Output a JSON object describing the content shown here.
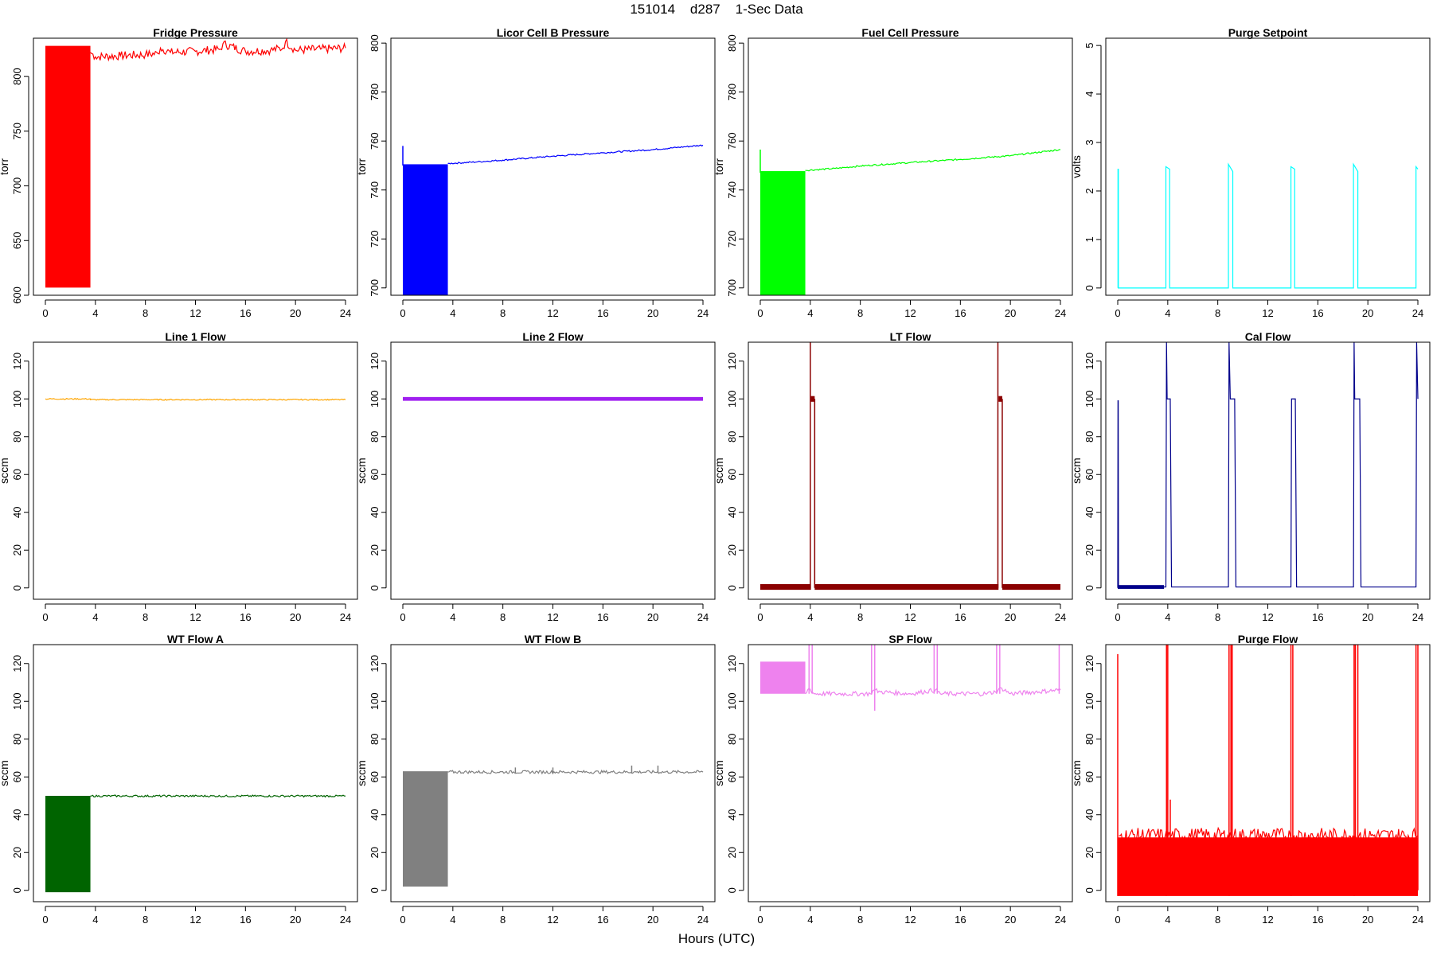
{
  "figure": {
    "title": "151014    d287    1-Sec Data",
    "xlabel": "Hours (UTC)"
  },
  "chart_data": [
    {
      "type": "line",
      "title": "Fridge Pressure",
      "xlabel": "",
      "ylabel": "torr",
      "color": "#ff0000",
      "xlim": [
        0,
        24
      ],
      "ylim": [
        600,
        835
      ],
      "xticks": [
        0,
        4,
        8,
        12,
        16,
        20,
        24
      ],
      "yticks": [
        600,
        650,
        700,
        750,
        800
      ],
      "bands": [
        {
          "x": [
            0,
            3.6
          ],
          "y": [
            607,
            828
          ]
        }
      ],
      "series": [
        {
          "x": [
            3.6,
            4,
            6,
            8,
            9,
            9.2,
            10,
            12,
            14,
            14.2,
            16,
            18,
            19,
            19.2,
            20,
            22,
            24
          ],
          "y": [
            822,
            818,
            819,
            820,
            821,
            826,
            822,
            823,
            825,
            830,
            823,
            824,
            826,
            832,
            824,
            825,
            826
          ],
          "noise": 4
        }
      ]
    },
    {
      "type": "line",
      "title": "Licor Cell B Pressure",
      "xlabel": "",
      "ylabel": "torr",
      "color": "#0000ff",
      "xlim": [
        0,
        24
      ],
      "ylim": [
        697,
        802
      ],
      "xticks": [
        0,
        4,
        8,
        12,
        16,
        20,
        24
      ],
      "yticks": [
        700,
        720,
        740,
        760,
        780,
        800
      ],
      "bands": [
        {
          "x": [
            0,
            3.6
          ],
          "y": [
            697,
            750.5
          ]
        }
      ],
      "spikes": [
        {
          "x": 0,
          "y": [
            750,
            758
          ]
        }
      ],
      "series": [
        {
          "x": [
            3.6,
            6,
            8,
            12,
            16,
            20,
            24
          ],
          "y": [
            750.8,
            751.5,
            752.2,
            753.8,
            755.2,
            756.5,
            758.3
          ],
          "noise": 0.3
        }
      ]
    },
    {
      "type": "line",
      "title": "Fuel Cell Pressure",
      "xlabel": "",
      "ylabel": "torr",
      "color": "#00ff00",
      "xlim": [
        0,
        24
      ],
      "ylim": [
        697,
        802
      ],
      "xticks": [
        0,
        4,
        8,
        12,
        16,
        20,
        24
      ],
      "yticks": [
        700,
        720,
        740,
        760,
        780,
        800
      ],
      "bands": [
        {
          "x": [
            0,
            3.6
          ],
          "y": [
            697,
            747.7
          ]
        }
      ],
      "spikes": [
        {
          "x": 0,
          "y": [
            747,
            756.5
          ]
        }
      ],
      "series": [
        {
          "x": [
            3.6,
            6,
            8,
            12,
            16,
            20,
            24
          ],
          "y": [
            748,
            748.8,
            749.8,
            751.2,
            752.5,
            754,
            756.5
          ],
          "noise": 0.3
        }
      ]
    },
    {
      "type": "line",
      "title": "Purge Setpoint",
      "xlabel": "",
      "ylabel": "volts",
      "color": "#00ffff",
      "xlim": [
        0,
        24
      ],
      "ylim": [
        -0.15,
        5.15
      ],
      "xticks": [
        0,
        4,
        8,
        12,
        16,
        20,
        24
      ],
      "yticks": [
        0,
        1,
        2,
        3,
        4,
        5
      ],
      "series": [
        {
          "x": [
            0,
            0.02,
            0.02,
            0.05,
            0.05,
            3.85,
            3.85,
            4.15,
            4.15,
            8.85,
            8.85,
            9.2,
            9.2,
            13.85,
            13.85,
            14.15,
            14.15,
            18.85,
            18.85,
            19.2,
            19.2,
            23.85,
            23.85,
            24
          ],
          "y": [
            0,
            0,
            2.45,
            2.45,
            0,
            0,
            2.5,
            2.45,
            0,
            0,
            2.55,
            2.4,
            0,
            0,
            2.5,
            2.45,
            0,
            0,
            2.55,
            2.4,
            0,
            0,
            2.5,
            2.45
          ],
          "noise": 0
        }
      ]
    },
    {
      "type": "line",
      "title": "Line 1 Flow",
      "xlabel": "",
      "ylabel": "sccm",
      "color": "#ffa500",
      "xlim": [
        0,
        24
      ],
      "ylim": [
        -6,
        130
      ],
      "xticks": [
        0,
        4,
        8,
        12,
        16,
        20,
        24
      ],
      "yticks": [
        0,
        20,
        40,
        60,
        80,
        100,
        120
      ],
      "series": [
        {
          "x": [
            0,
            3.6,
            3.6,
            24
          ],
          "y": [
            100,
            100,
            99.6,
            99.6
          ],
          "noise": 0.3
        }
      ]
    },
    {
      "type": "line",
      "title": "Line 2 Flow",
      "xlabel": "",
      "ylabel": "sccm",
      "color": "#a020f0",
      "xlim": [
        0,
        24
      ],
      "ylim": [
        -6,
        130
      ],
      "xticks": [
        0,
        4,
        8,
        12,
        16,
        20,
        24
      ],
      "yticks": [
        0,
        20,
        40,
        60,
        80,
        100,
        120
      ],
      "bands": [
        {
          "x": [
            0,
            24
          ],
          "y": [
            99,
            101
          ]
        }
      ]
    },
    {
      "type": "line",
      "title": "LT Flow",
      "xlabel": "",
      "ylabel": "sccm",
      "color": "#8b0000",
      "xlim": [
        0,
        24
      ],
      "ylim": [
        -6,
        130
      ],
      "xticks": [
        0,
        4,
        8,
        12,
        16,
        20,
        24
      ],
      "yticks": [
        0,
        20,
        40,
        60,
        80,
        100,
        120
      ],
      "bands": [
        {
          "x": [
            0,
            4.05
          ],
          "y": [
            -1,
            2
          ]
        },
        {
          "x": [
            4.35,
            19.05
          ],
          "y": [
            -1,
            2
          ]
        },
        {
          "x": [
            19.35,
            24
          ],
          "y": [
            -1,
            2
          ]
        },
        {
          "x": [
            4.05,
            4.35
          ],
          "y": [
            98.5,
            101.5
          ]
        },
        {
          "x": [
            19.05,
            19.35
          ],
          "y": [
            98.5,
            101.5
          ]
        }
      ],
      "spikes": [
        {
          "x": 4.0,
          "y": [
            0,
            130
          ]
        },
        {
          "x": 4.35,
          "y": [
            0,
            100
          ]
        },
        {
          "x": 19.0,
          "y": [
            0,
            130
          ]
        },
        {
          "x": 19.35,
          "y": [
            0,
            100
          ]
        }
      ]
    },
    {
      "type": "line",
      "title": "Cal Flow",
      "xlabel": "",
      "ylabel": "sccm",
      "color": "#00008b",
      "xlim": [
        0,
        24
      ],
      "ylim": [
        -6,
        130
      ],
      "xticks": [
        0,
        4,
        8,
        12,
        16,
        20,
        24
      ],
      "yticks": [
        0,
        20,
        40,
        60,
        80,
        100,
        120
      ],
      "bands": [
        {
          "x": [
            0,
            3.7
          ],
          "y": [
            -0.5,
            1.5
          ]
        }
      ],
      "series": [
        {
          "x": [
            0,
            0.02,
            0.04,
            0.06,
            3.7,
            3.85,
            3.9,
            3.95,
            4.2,
            4.3,
            8.85,
            8.9,
            9.0,
            9.35,
            9.45,
            13.85,
            13.9,
            14.2,
            14.3,
            18.85,
            18.9,
            18.95,
            19.35,
            19.45,
            23.85,
            23.9,
            24
          ],
          "y": [
            0,
            99,
            99,
            0,
            0.5,
            0.5,
            130,
            100,
            100,
            0.5,
            0.5,
            130,
            100,
            100,
            0.5,
            0.5,
            100,
            100,
            0.5,
            0.5,
            130,
            100,
            100,
            0.5,
            0.5,
            130,
            100
          ],
          "noise": 0
        }
      ]
    },
    {
      "type": "line",
      "title": "WT Flow A",
      "xlabel": "",
      "ylabel": "sccm",
      "color": "#006400",
      "xlim": [
        0,
        24
      ],
      "ylim": [
        -6,
        130
      ],
      "xticks": [
        0,
        4,
        8,
        12,
        16,
        20,
        24
      ],
      "yticks": [
        0,
        20,
        40,
        60,
        80,
        100,
        120
      ],
      "bands": [
        {
          "x": [
            0,
            3.6
          ],
          "y": [
            -1,
            50
          ]
        }
      ],
      "series": [
        {
          "x": [
            3.6,
            24
          ],
          "y": [
            49.9,
            49.9
          ],
          "noise": 0.5
        }
      ]
    },
    {
      "type": "line",
      "title": "WT Flow B",
      "xlabel": "",
      "ylabel": "sccm",
      "color": "#808080",
      "xlim": [
        0,
        24
      ],
      "ylim": [
        -6,
        130
      ],
      "xticks": [
        0,
        4,
        8,
        12,
        16,
        20,
        24
      ],
      "yticks": [
        0,
        20,
        40,
        60,
        80,
        100,
        120
      ],
      "bands": [
        {
          "x": [
            0,
            3.6
          ],
          "y": [
            2,
            63
          ]
        }
      ],
      "series": [
        {
          "x": [
            3.6,
            24
          ],
          "y": [
            62.6,
            62.6
          ],
          "noise": 0.8
        }
      ],
      "spikes": [
        {
          "x": 9,
          "y": [
            62,
            65
          ]
        },
        {
          "x": 12,
          "y": [
            62,
            65
          ]
        },
        {
          "x": 18.3,
          "y": [
            62,
            66
          ]
        },
        {
          "x": 20.4,
          "y": [
            62,
            66
          ]
        }
      ]
    },
    {
      "type": "line",
      "title": "SP Flow",
      "xlabel": "",
      "ylabel": "sccm",
      "color": "#ee82ee",
      "xlim": [
        0,
        24
      ],
      "ylim": [
        -6,
        130
      ],
      "xticks": [
        0,
        4,
        8,
        12,
        16,
        20,
        24
      ],
      "yticks": [
        0,
        20,
        40,
        60,
        80,
        100,
        120
      ],
      "bands": [
        {
          "x": [
            0,
            3.6
          ],
          "y": [
            104,
            121
          ]
        }
      ],
      "series": [
        {
          "x": [
            3.6,
            3.9,
            4.3,
            6,
            8,
            8.8,
            9.1,
            9.6,
            12,
            14,
            14.4,
            16,
            18,
            18.8,
            19.3,
            20,
            24
          ],
          "y": [
            104,
            107,
            104,
            104,
            104,
            104,
            106,
            105,
            104,
            106,
            104,
            104,
            104,
            105,
            107,
            104,
            106
          ],
          "noise": 1.2
        }
      ],
      "spikes": [
        {
          "x": 3.9,
          "y": [
            104,
            130
          ]
        },
        {
          "x": 4.15,
          "y": [
            104,
            130
          ]
        },
        {
          "x": 8.9,
          "y": [
            104,
            130
          ]
        },
        {
          "x": 9.15,
          "y": [
            95,
            130
          ]
        },
        {
          "x": 13.9,
          "y": [
            104,
            130
          ]
        },
        {
          "x": 14.15,
          "y": [
            104,
            130
          ]
        },
        {
          "x": 18.9,
          "y": [
            104,
            130
          ]
        },
        {
          "x": 19.15,
          "y": [
            104,
            130
          ]
        },
        {
          "x": 23.9,
          "y": [
            104,
            130
          ]
        }
      ]
    },
    {
      "type": "line",
      "title": "Purge Flow",
      "xlabel": "",
      "ylabel": "sccm",
      "color": "#ff0000",
      "xlim": [
        0,
        24
      ],
      "ylim": [
        -6,
        130
      ],
      "xticks": [
        0,
        4,
        8,
        12,
        16,
        20,
        24
      ],
      "yticks": [
        0,
        20,
        40,
        60,
        80,
        100,
        120
      ],
      "bands": [
        {
          "x": [
            0,
            24
          ],
          "y": [
            -3,
            28
          ]
        }
      ],
      "series": [
        {
          "x": [
            0.1,
            3.8,
            4.3,
            8.8,
            9.3,
            13.8,
            14.3,
            18.8,
            19.3,
            23.8,
            24
          ],
          "y": [
            29,
            29,
            29,
            29,
            29,
            29,
            29,
            29,
            29,
            29,
            29
          ],
          "noise": 4
        }
      ],
      "spikes": [
        {
          "x": 0,
          "y": [
            -3,
            125
          ]
        },
        {
          "x": 3.9,
          "y": [
            -3,
            130
          ]
        },
        {
          "x": 4.0,
          "y": [
            0,
            130
          ]
        },
        {
          "x": 4.2,
          "y": [
            10,
            48
          ]
        },
        {
          "x": 8.9,
          "y": [
            -3,
            130
          ]
        },
        {
          "x": 9.05,
          "y": [
            0,
            130
          ]
        },
        {
          "x": 9.15,
          "y": [
            0,
            130
          ]
        },
        {
          "x": 13.85,
          "y": [
            -3,
            130
          ]
        },
        {
          "x": 14.0,
          "y": [
            0,
            130
          ]
        },
        {
          "x": 18.9,
          "y": [
            -3,
            130
          ]
        },
        {
          "x": 19.0,
          "y": [
            0,
            130
          ]
        },
        {
          "x": 19.2,
          "y": [
            0,
            130
          ]
        },
        {
          "x": 23.85,
          "y": [
            -3,
            130
          ]
        },
        {
          "x": 24,
          "y": [
            0,
            130
          ]
        }
      ]
    }
  ]
}
